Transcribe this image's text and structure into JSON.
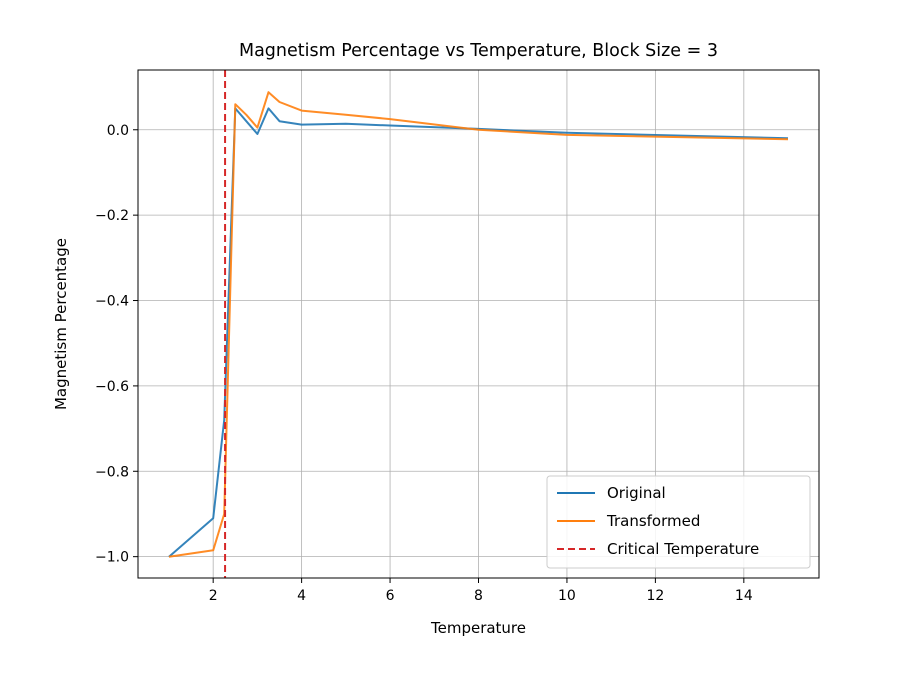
{
  "chart_data": {
    "type": "line",
    "title": "Magnetism Percentage vs Temperature, Block Size = 3",
    "xlabel": "Temperature",
    "ylabel": "Magnetism Percentage",
    "xlim": [
      0.3,
      15.7
    ],
    "ylim": [
      -1.05,
      0.14
    ],
    "xticks": [
      2,
      4,
      6,
      8,
      10,
      12,
      14
    ],
    "yticks": [
      -1.0,
      -0.8,
      -0.6,
      -0.4,
      -0.2,
      0.0
    ],
    "ytick_labels": [
      "−1.0",
      "−0.8",
      "−0.6",
      "−0.4",
      "−0.2",
      "0.0"
    ],
    "grid": true,
    "legend_position": "lower-right",
    "series": [
      {
        "name": "Original",
        "color": "#1f77b4",
        "style": "solid",
        "x": [
          1.0,
          2.0,
          2.25,
          2.5,
          2.75,
          3.0,
          3.25,
          3.5,
          4.0,
          5.0,
          6.0,
          8.0,
          10.0,
          15.0
        ],
        "y": [
          -1.0,
          -0.91,
          -0.68,
          0.05,
          0.02,
          -0.01,
          0.05,
          0.02,
          0.012,
          0.014,
          0.01,
          0.002,
          -0.007,
          -0.02
        ]
      },
      {
        "name": "Transformed",
        "color": "#ff7f0e",
        "style": "solid",
        "x": [
          1.0,
          2.0,
          2.25,
          2.5,
          2.75,
          3.0,
          3.25,
          3.5,
          4.0,
          5.0,
          6.0,
          8.0,
          10.0,
          15.0
        ],
        "y": [
          -1.0,
          -0.985,
          -0.9,
          0.06,
          0.035,
          0.005,
          0.088,
          0.065,
          0.045,
          0.035,
          0.025,
          0.0,
          -0.012,
          -0.022
        ]
      },
      {
        "name": "Critical Temperature",
        "color": "#d62728",
        "style": "dashed",
        "vline_x": 2.269
      }
    ]
  }
}
